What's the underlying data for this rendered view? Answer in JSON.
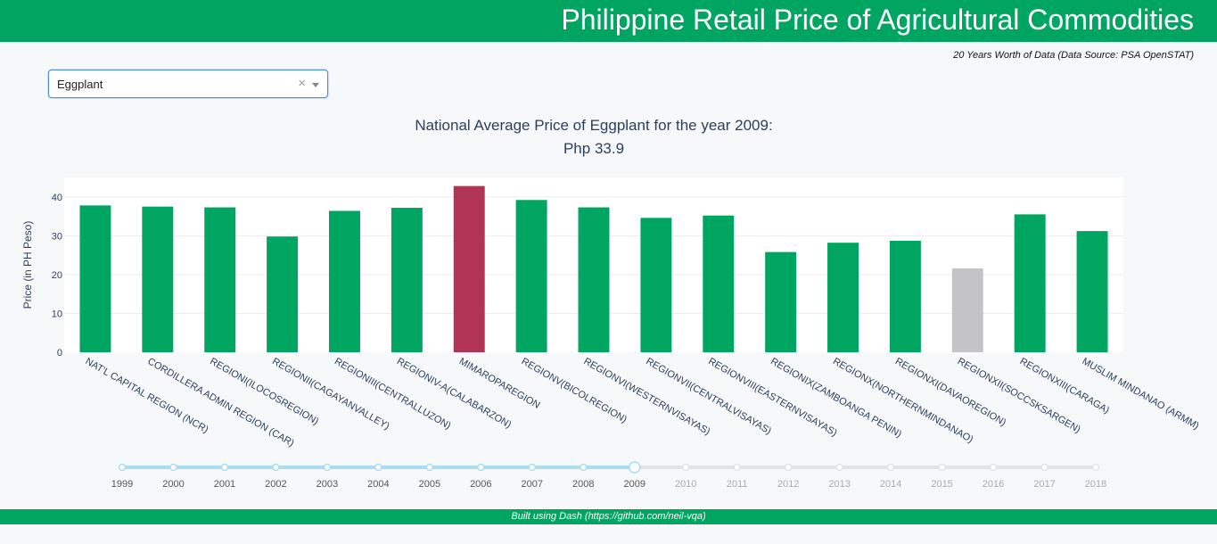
{
  "header": {
    "title": "Philippine Retail Price of Agricultural Commodities"
  },
  "subtitle": "20 Years Worth of Data (Data Source: PSA OpenSTAT)",
  "dropdown": {
    "value": "Eggplant",
    "clear_symbol": "×"
  },
  "chart_title": {
    "line1": "National Average Price of Eggplant for the year 2009:",
    "line2": "Php 33.9"
  },
  "slider": {
    "years": [
      "1999",
      "2000",
      "2001",
      "2002",
      "2003",
      "2004",
      "2005",
      "2006",
      "2007",
      "2008",
      "2009",
      "2010",
      "2011",
      "2012",
      "2013",
      "2014",
      "2015",
      "2016",
      "2017",
      "2018"
    ],
    "selected": "2009",
    "active_color": "#a8ddf5",
    "inactive_color": "#e3e3e3"
  },
  "footer": {
    "text": "Built using Dash (https://github.com/neil-vqa)"
  },
  "colors": {
    "green": "#00a562",
    "highlight": "#b23454",
    "gray": "#c4c4c6"
  },
  "chart_data": {
    "type": "bar",
    "ylabel": "Price (in PH Peso)",
    "xlabel": "",
    "ylim": [
      0,
      45
    ],
    "yticks": [
      0,
      10,
      20,
      30,
      40
    ],
    "categories": [
      "NAT'L CAPITAL REGION (NCR)",
      "CORDILLERA ADMIN REGION (CAR)",
      "REGIONI(ILOCOSREGION)",
      "REGIONII(CAGAYANVALLEY)",
      "REGIONIII(CENTRALLUZON)",
      "REGIONIV-A(CALABARZON)",
      "MIMAROPAREGION",
      "REGIONV(BICOLREGION)",
      "REGIONVI(WESTERNVISAYAS)",
      "REGIONVII(CENTRALVISAYAS)",
      "REGIONVIII(EASTERNVISAYAS)",
      "REGIONIX(ZAMBOANGA PENIN)",
      "REGIONX(NORTHERNMINDANAO)",
      "REGIONXI(DAVAOREGION)",
      "REGIONXII(SOCCSKSARGEN)",
      "REGIONXIII(CARAGA)",
      "MUSLIM MINDANAO (ARMM)"
    ],
    "values": [
      37.8,
      37.5,
      37.3,
      29.8,
      36.4,
      37.2,
      42.8,
      39.2,
      37.3,
      34.6,
      35.2,
      25.8,
      28.2,
      28.7,
      21.6,
      35.5,
      31.2
    ],
    "bar_colors": [
      "green",
      "green",
      "green",
      "green",
      "green",
      "green",
      "highlight",
      "green",
      "green",
      "green",
      "green",
      "green",
      "green",
      "green",
      "gray",
      "green",
      "green"
    ],
    "grid": true
  }
}
